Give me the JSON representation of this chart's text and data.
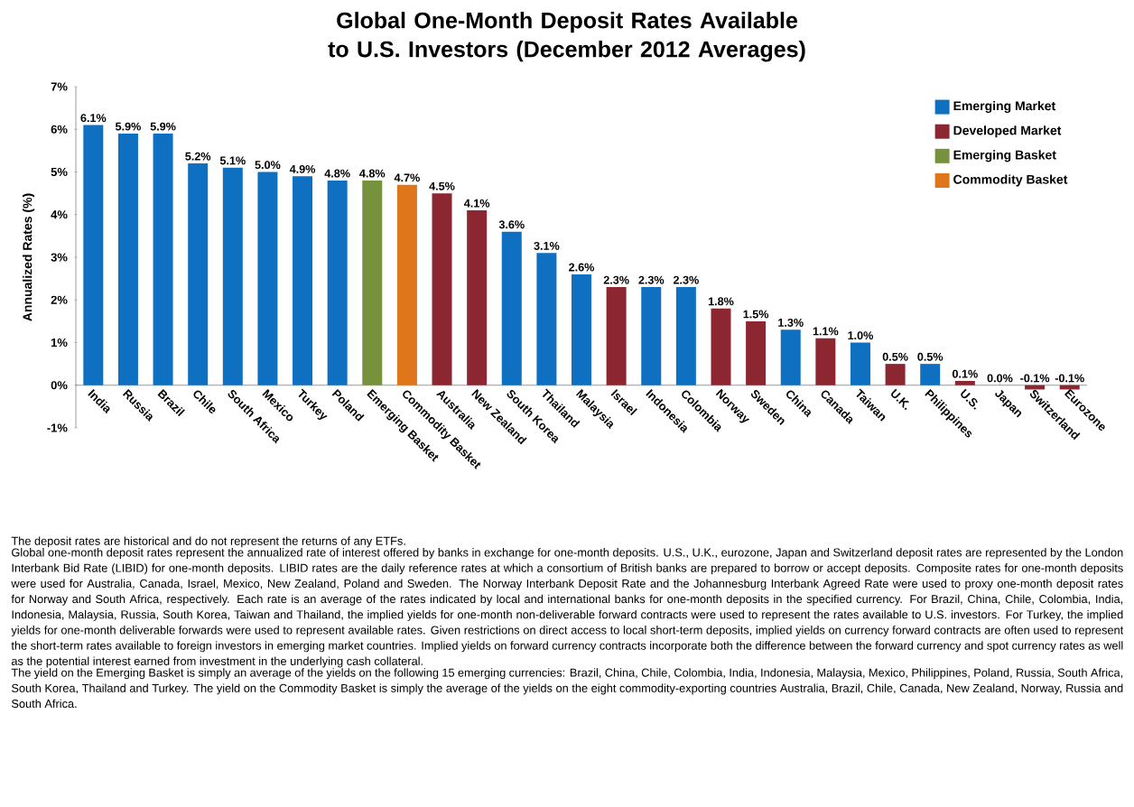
{
  "chart_data": {
    "type": "bar",
    "title": "Global One-Month Deposit Rates Available to U.S. Investors (December 2012 Averages)",
    "ylabel": "Annualized Rates (%)",
    "categories": [
      "India",
      "Russia",
      "Brazil",
      "Chile",
      "South Africa",
      "Mexico",
      "Turkey",
      "Poland",
      "Emerging Basket",
      "Commodity Basket",
      "Australia",
      "New Zealand",
      "South Korea",
      "Thailand",
      "Malaysia",
      "Israel",
      "Indonesia",
      "Colombia",
      "Norway",
      "Sweden",
      "China",
      "Canada",
      "Taiwan",
      "U.K.",
      "Philippines",
      "U.S.",
      "Japan",
      "Switzerland",
      "Eurozone"
    ],
    "series": [
      {
        "name": "Emerging Market",
        "color": "#0f6fc0",
        "values": [
          6.1,
          5.9,
          5.9,
          5.2,
          5.1,
          5.0,
          4.9,
          4.8,
          null,
          null,
          null,
          null,
          3.6,
          3.1,
          2.6,
          null,
          2.3,
          2.3,
          null,
          null,
          1.3,
          null,
          1.0,
          null,
          0.5,
          null,
          null,
          null,
          null
        ],
        "value_labels": [
          "6.1%",
          "5.9%",
          "5.9%",
          "5.2%",
          "5.1%",
          "5.0%",
          "4.9%",
          "4.8%",
          null,
          null,
          null,
          null,
          "3.6%",
          "3.1%",
          "2.6%",
          null,
          "2.3%",
          "2.3%",
          null,
          null,
          "1.3%",
          null,
          "1.0%",
          null,
          "0.5%",
          null,
          null,
          null,
          null
        ]
      },
      {
        "name": "Developed Market",
        "color": "#8c2630",
        "values": [
          null,
          null,
          null,
          null,
          null,
          null,
          null,
          null,
          null,
          null,
          4.5,
          4.1,
          null,
          null,
          null,
          2.3,
          null,
          null,
          1.8,
          1.5,
          null,
          1.1,
          null,
          0.5,
          null,
          0.1,
          0.0,
          -0.1,
          -0.1
        ],
        "value_labels": [
          null,
          null,
          null,
          null,
          null,
          null,
          null,
          null,
          null,
          null,
          "4.5%",
          "4.1%",
          null,
          null,
          null,
          "2.3%",
          null,
          null,
          "1.8%",
          "1.5%",
          null,
          "1.1%",
          null,
          "0.5%",
          null,
          "0.1%",
          "0.0%",
          "-0.1%",
          "-0.1%"
        ]
      },
      {
        "name": "Emerging Basket",
        "color": "#76923c",
        "values": [
          null,
          null,
          null,
          null,
          null,
          null,
          null,
          null,
          4.8,
          null,
          null,
          null,
          null,
          null,
          null,
          null,
          null,
          null,
          null,
          null,
          null,
          null,
          null,
          null,
          null,
          null,
          null,
          null,
          null
        ],
        "value_labels": [
          null,
          null,
          null,
          null,
          null,
          null,
          null,
          null,
          "4.8%",
          null,
          null,
          null,
          null,
          null,
          null,
          null,
          null,
          null,
          null,
          null,
          null,
          null,
          null,
          null,
          null,
          null,
          null,
          null,
          null
        ]
      },
      {
        "name": "Commodity Basket",
        "color": "#e0761c",
        "values": [
          null,
          null,
          null,
          null,
          null,
          null,
          null,
          null,
          null,
          4.7,
          null,
          null,
          null,
          null,
          null,
          null,
          null,
          null,
          null,
          null,
          null,
          null,
          null,
          null,
          null,
          null,
          null,
          null,
          null
        ],
        "value_labels": [
          null,
          null,
          null,
          null,
          null,
          null,
          null,
          null,
          null,
          "4.7%",
          null,
          null,
          null,
          null,
          null,
          null,
          null,
          null,
          null,
          null,
          null,
          null,
          null,
          null,
          null,
          null,
          null,
          null,
          null
        ]
      }
    ],
    "ylim": [
      -1,
      7
    ],
    "yticks": [
      {
        "value": -1,
        "label": "-1%"
      },
      {
        "value": 0,
        "label": "0%"
      },
      {
        "value": 1,
        "label": "1%"
      },
      {
        "value": 2,
        "label": "2%"
      },
      {
        "value": 3,
        "label": "3%"
      },
      {
        "value": 4,
        "label": "4%"
      },
      {
        "value": 5,
        "label": "5%"
      },
      {
        "value": 6,
        "label": "6%"
      },
      {
        "value": 7,
        "label": "7%"
      }
    ],
    "legend": "top right",
    "annotations": [
      "The deposit rates are historical and do not represent the returns of any ETFs.",
      "Global one-month deposit rates represent the annualized rate of interest offered by banks in exchange for one-month deposits. U.S., U.K., eurozone, Japan and Switzerland deposit rates are represented by the London Interbank Bid Rate (LIBID) for one-month deposits. LIBID rates are the daily reference rates at which a consortium of British banks are prepared to borrow or accept deposits. Composite rates for one-month deposits were used for Australia, Canada, Israel, Mexico, New Zealand, Poland and Sweden. The Norway Interbank Deposit Rate and the Johannesburg Interbank Agreed Rate were used to proxy one-month deposit rates for Norway and South Africa, respectively. Each rate is an average of the rates indicated by local and international banks for one-month deposits in the specified currency. For Brazil, China, Chile, Colombia, India, Indonesia, Malaysia, Russia, South Korea, Taiwan and Thailand, the implied yields for one-month non-deliverable forward contracts were used to represent the rates available to U.S. investors. For Turkey, the implied yields for one-month deliverable forwards were used to represent available rates. Given restrictions on direct access to local short-term deposits, implied yields on currency forward contracts are often used to represent the short-term rates available to foreign investors in emerging market countries. Implied yields on forward currency contracts incorporate both the difference between the forward currency and spot currency rates as well as the potential interest earned from investment in the underlying cash collateral.",
      "The yield on the Emerging Basket is simply an average of the yields on the following 15 emerging currencies: Brazil, China, Chile, Colombia, India, Indonesia, Malaysia, Mexico, Philippines, Poland, Russia, South Africa, South Korea, Thailand and Turkey. The yield on the Commodity Basket is simply the average of the yields on the eight commodity-exporting countries Australia, Brazil, Chile, Canada, New Zealand, Norway, Russia and South Africa."
    ]
  }
}
